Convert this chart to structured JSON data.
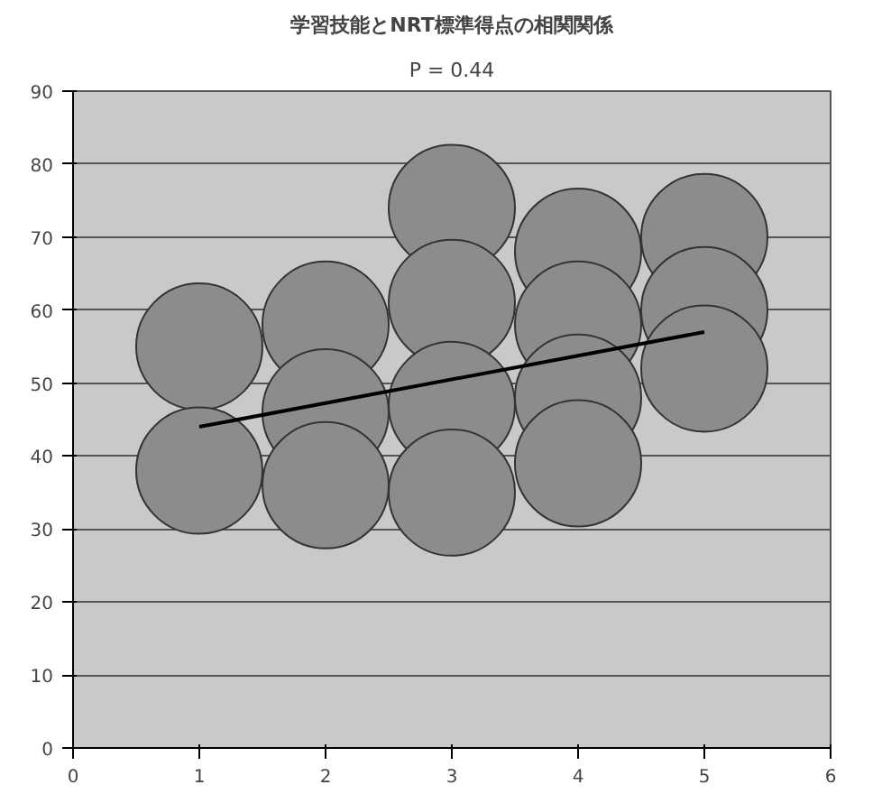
{
  "chart_data": {
    "type": "scatter",
    "title": "学習技能とNRT標準得点の相関関係",
    "subtitle": "P = 0.44",
    "xlim": [
      0,
      6
    ],
    "xticks": [
      0,
      1,
      2,
      3,
      4,
      5,
      6
    ],
    "ylim": [
      0,
      90
    ],
    "yticks": [
      0,
      10,
      20,
      30,
      40,
      50,
      60,
      70,
      80,
      90
    ],
    "grid": "y",
    "series": [
      {
        "marker": "circle",
        "color": "#8c8c8c",
        "x": [
          1,
          1,
          2,
          2,
          2,
          3,
          3,
          3,
          3,
          4,
          4,
          4,
          4,
          5,
          5,
          5
        ],
        "values": [
          55,
          38,
          58,
          46,
          36,
          74,
          61,
          47,
          35,
          68,
          58,
          48,
          39,
          70,
          60,
          52
        ]
      },
      {
        "type": "line",
        "color": "#000000",
        "x": [
          1,
          5
        ],
        "values": [
          44,
          57
        ]
      }
    ]
  }
}
